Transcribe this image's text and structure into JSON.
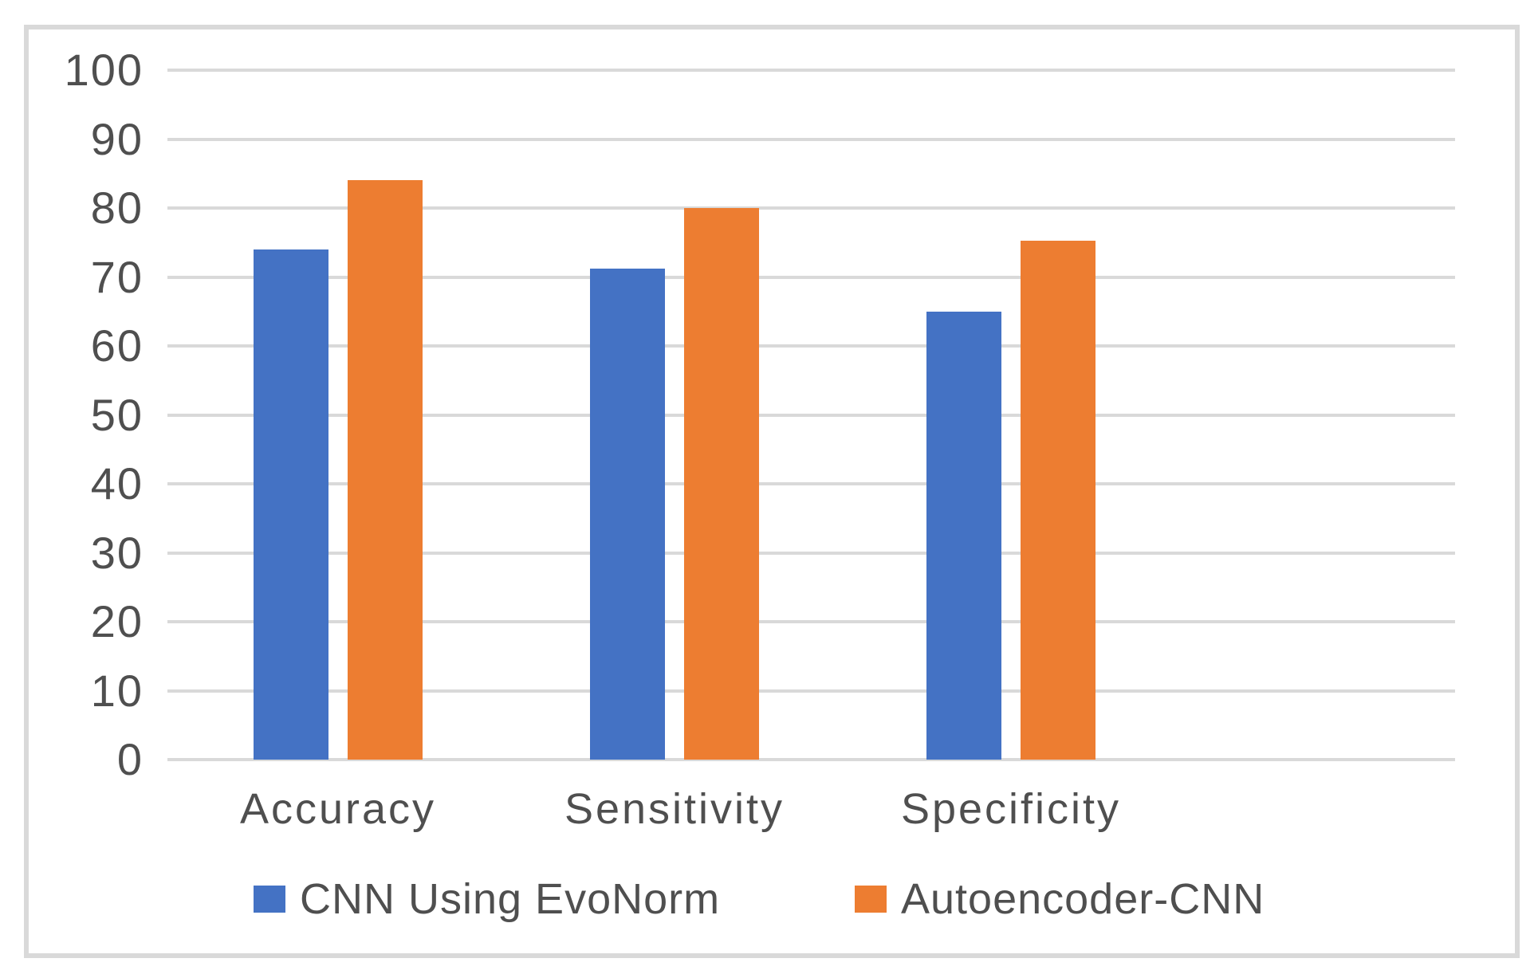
{
  "chart_data": {
    "type": "bar",
    "categories": [
      "Accuracy",
      "Sensitivity",
      "Specificity"
    ],
    "series": [
      {
        "name": "CNN Using EvoNorm",
        "color": "#4472C4",
        "values": [
          74,
          71.2,
          65
        ]
      },
      {
        "name": "Autoencoder-CNN",
        "color": "#ED7D31",
        "values": [
          84,
          80,
          75.3
        ]
      }
    ],
    "title": "",
    "xlabel": "",
    "ylabel": "",
    "ylim": [
      0,
      100
    ],
    "ytick_step": 10,
    "yticks": [
      0,
      10,
      20,
      30,
      40,
      50,
      60,
      70,
      80,
      90,
      100
    ],
    "grid": true,
    "gridline_color": "#D9D9D9",
    "frame_border_color": "#D9D9D9",
    "text_color": "#4F4F4F",
    "background_color": "#FFFFFF",
    "legend_position": "bottom"
  }
}
